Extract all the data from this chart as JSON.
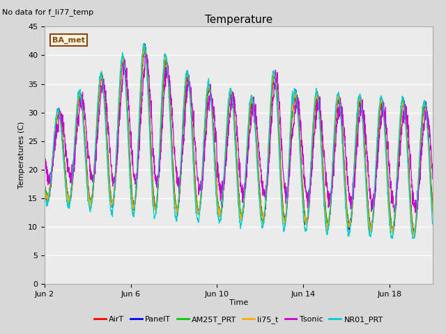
{
  "title": "Temperature",
  "no_data_label": "No data for f_li77_temp",
  "ylabel": "Temperatures (C)",
  "xlabel": "Time",
  "ylim": [
    0,
    45
  ],
  "yticks": [
    0,
    5,
    10,
    15,
    20,
    25,
    30,
    35,
    40,
    45
  ],
  "bg_color": "#d8d8d8",
  "plot_bg_color": "#ebebeb",
  "grid_color": "#ffffff",
  "series": [
    {
      "name": "AirT",
      "color": "#ff0000"
    },
    {
      "name": "PanelT",
      "color": "#0000ff"
    },
    {
      "name": "AM25T_PRT",
      "color": "#00cc00"
    },
    {
      "name": "li75_t",
      "color": "#ffaa00"
    },
    {
      "name": "Tsonic",
      "color": "#cc00cc"
    },
    {
      "name": "NR01_PRT",
      "color": "#00cccc"
    }
  ],
  "legend_label": "BA_met",
  "legend_label_color": "#8B4513",
  "legend_label_bg": "#f5f5dc",
  "x_tick_labels": [
    "Jun 2",
    "Jun 6",
    "Jun 10",
    "Jun 14",
    "Jun 18"
  ],
  "x_tick_positions": [
    2,
    6,
    10,
    14,
    18
  ],
  "start_day": 2,
  "end_day": 20,
  "num_points": 2000,
  "figsize": [
    6.4,
    4.8
  ],
  "dpi": 100
}
